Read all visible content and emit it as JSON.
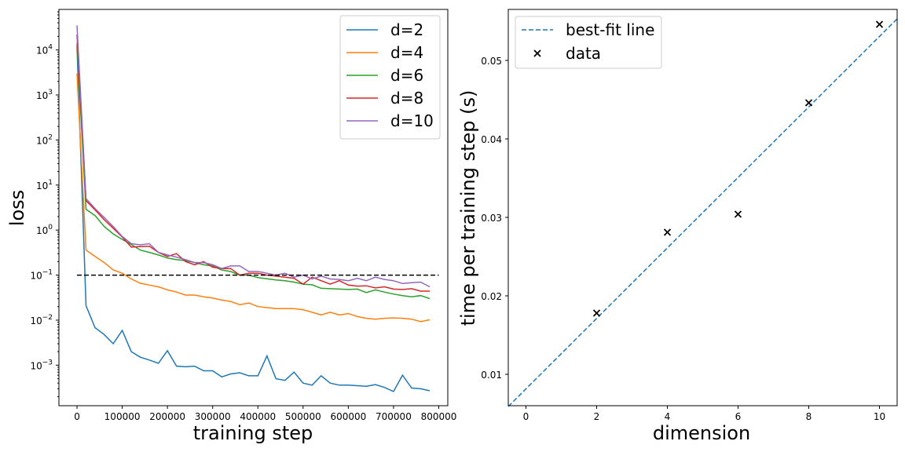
{
  "chart_data": [
    {
      "type": "line",
      "title": "",
      "xlabel": "training step",
      "ylabel": "loss",
      "yscale": "log",
      "xlim": [
        -40000,
        820000
      ],
      "ylim_log10": [
        -3.9,
        4.9
      ],
      "x_ticks": [
        0,
        100000,
        200000,
        300000,
        400000,
        500000,
        600000,
        700000,
        800000
      ],
      "x_tick_labels": [
        "0",
        "100000",
        "200000",
        "300000",
        "400000",
        "500000",
        "600000",
        "700000",
        "800000"
      ],
      "y_ticks_log10": [
        -3,
        -2,
        -1,
        0,
        1,
        2,
        3,
        4
      ],
      "y_tick_labels": [
        {
          "base": "10",
          "exp": "−3"
        },
        {
          "base": "10",
          "exp": "−2"
        },
        {
          "base": "10",
          "exp": "−1"
        },
        {
          "base": "10",
          "exp": "0"
        },
        {
          "base": "10",
          "exp": "1"
        },
        {
          "base": "10",
          "exp": "2"
        },
        {
          "base": "10",
          "exp": "3"
        },
        {
          "base": "10",
          "exp": "4"
        }
      ],
      "legend_position": "upper right",
      "threshold": {
        "y": 0.1,
        "x_range": [
          0,
          800000
        ],
        "color": "#000000",
        "style": "dashed"
      },
      "x": [
        0,
        20000,
        40000,
        60000,
        80000,
        100000,
        120000,
        140000,
        160000,
        180000,
        200000,
        220000,
        240000,
        260000,
        280000,
        300000,
        320000,
        340000,
        360000,
        380000,
        400000,
        420000,
        440000,
        460000,
        480000,
        500000,
        520000,
        540000,
        560000,
        580000,
        600000,
        620000,
        640000,
        660000,
        680000,
        700000,
        720000,
        740000,
        760000,
        780000
      ],
      "series": [
        {
          "name": "d=2",
          "color": "#1f77b4",
          "values": [
            12000,
            0.021,
            0.0068,
            0.0048,
            0.003,
            0.0059,
            0.002,
            0.0015,
            0.0013,
            0.0011,
            0.0021,
            0.00095,
            0.00092,
            0.00095,
            0.00075,
            0.00075,
            0.00055,
            0.00064,
            0.00068,
            0.00058,
            0.00058,
            0.0016,
            0.0005,
            0.00046,
            0.0007,
            0.0004,
            0.00036,
            0.00058,
            0.0004,
            0.00036,
            0.00036,
            0.00035,
            0.00034,
            0.00037,
            0.00032,
            0.00026,
            0.0006,
            0.00031,
            0.0003,
            0.00027
          ]
        },
        {
          "name": "d=4",
          "color": "#ff7f0e",
          "values": [
            3000,
            0.36,
            0.26,
            0.19,
            0.13,
            0.11,
            0.082,
            0.066,
            0.06,
            0.055,
            0.047,
            0.042,
            0.036,
            0.036,
            0.033,
            0.031,
            0.028,
            0.026,
            0.022,
            0.024,
            0.02,
            0.019,
            0.018,
            0.018,
            0.018,
            0.017,
            0.015,
            0.013,
            0.015,
            0.013,
            0.014,
            0.012,
            0.011,
            0.0105,
            0.011,
            0.0112,
            0.011,
            0.0105,
            0.0093,
            0.0102
          ]
        },
        {
          "name": "d=6",
          "color": "#2ca02c",
          "values": [
            14000,
            2.9,
            2.1,
            1.2,
            0.82,
            0.62,
            0.48,
            0.36,
            0.32,
            0.28,
            0.24,
            0.22,
            0.21,
            0.19,
            0.17,
            0.16,
            0.13,
            0.12,
            0.1,
            0.1,
            0.088,
            0.083,
            0.078,
            0.075,
            0.07,
            0.063,
            0.061,
            0.051,
            0.05,
            0.049,
            0.048,
            0.049,
            0.041,
            0.047,
            0.042,
            0.038,
            0.035,
            0.033,
            0.035,
            0.03
          ]
        },
        {
          "name": "d=8",
          "color": "#d62728",
          "values": [
            22000,
            4.5,
            2.8,
            1.7,
            1.1,
            0.7,
            0.42,
            0.43,
            0.44,
            0.32,
            0.26,
            0.3,
            0.2,
            0.17,
            0.2,
            0.15,
            0.14,
            0.14,
            0.1,
            0.11,
            0.11,
            0.1,
            0.095,
            0.09,
            0.085,
            0.063,
            0.09,
            0.075,
            0.063,
            0.075,
            0.06,
            0.057,
            0.058,
            0.052,
            0.055,
            0.049,
            0.048,
            0.05,
            0.044,
            0.044
          ]
        },
        {
          "name": "d=10",
          "color": "#9467bd",
          "values": [
            35000,
            5,
            3,
            1.9,
            1.2,
            0.72,
            0.5,
            0.47,
            0.5,
            0.32,
            0.28,
            0.25,
            0.22,
            0.19,
            0.19,
            0.17,
            0.14,
            0.16,
            0.16,
            0.12,
            0.12,
            0.11,
            0.1,
            0.11,
            0.09,
            0.1,
            0.082,
            0.095,
            0.082,
            0.08,
            0.075,
            0.085,
            0.075,
            0.09,
            0.08,
            0.075,
            0.065,
            0.068,
            0.07,
            0.055
          ]
        }
      ]
    },
    {
      "type": "scatter",
      "title": "",
      "xlabel": "dimension",
      "ylabel": "time per training step (s)",
      "xlim": [
        -0.5,
        10.5
      ],
      "ylim": [
        0.006,
        0.0565
      ],
      "x_ticks": [
        0,
        2,
        4,
        6,
        8,
        10
      ],
      "x_tick_labels": [
        "0",
        "2",
        "4",
        "6",
        "8",
        "10"
      ],
      "y_ticks": [
        0.01,
        0.02,
        0.03,
        0.04,
        0.05
      ],
      "y_tick_labels": [
        "0.01",
        "0.02",
        "0.03",
        "0.04",
        "0.05"
      ],
      "legend_position": "upper left",
      "series": [
        {
          "name": "best-fit line",
          "kind": "line",
          "style": "dashed",
          "color": "#1f77b4",
          "x": [
            -0.5,
            10.5
          ],
          "y": [
            0.0059,
            0.0553
          ]
        },
        {
          "name": "data",
          "kind": "scatter",
          "marker": "x",
          "color": "#000000",
          "x": [
            2,
            4,
            6,
            8,
            10
          ],
          "y": [
            0.0178,
            0.0281,
            0.0304,
            0.0446,
            0.0546
          ]
        }
      ]
    }
  ]
}
